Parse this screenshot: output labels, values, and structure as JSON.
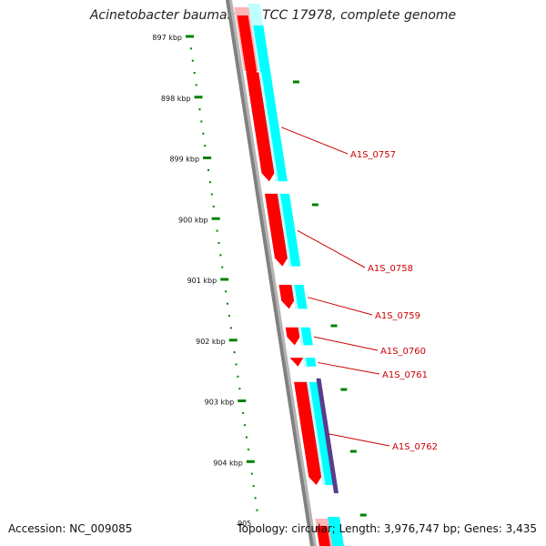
{
  "title": "Acinetobacter baumannii ATCC 17978, complete genome",
  "accession": "Accession: NC_009085",
  "topology": "Topology: circular; Length: 3,976,747 bp; Genes: 3,435",
  "colors": {
    "backbone": "#808080",
    "cds_forward": "#ff0000",
    "cds_forward_light": "#ffb6b6",
    "cds_highlight": "#00ffff",
    "cds_highlight_light": "#c0ffff",
    "cds_other": "#5a3c8c",
    "tick": "#008000",
    "gene_label": "#cc0000",
    "label_text": "#111111"
  },
  "scale": {
    "unit": "kbp",
    "ticks": [
      {
        "value": 897,
        "label": "897 kbp"
      },
      {
        "value": 898,
        "label": "898 kbp"
      },
      {
        "value": 899,
        "label": "899 kbp"
      },
      {
        "value": 900,
        "label": "900 kbp"
      },
      {
        "value": 901,
        "label": "901 kbp"
      },
      {
        "value": 902,
        "label": "902 kbp"
      },
      {
        "value": 903,
        "label": "903 kbp"
      },
      {
        "value": 904,
        "label": "904 kbp"
      },
      {
        "value": 905,
        "label": "905"
      }
    ]
  },
  "genes": [
    {
      "name": "A1S_0757",
      "start": 897.5,
      "end": 899.4
    },
    {
      "name": "A1S_0758",
      "start": 899.5,
      "end": 900.8
    },
    {
      "name": "A1S_0759",
      "start": 901.0,
      "end": 901.5
    },
    {
      "name": "A1S_0760",
      "start": 901.7,
      "end": 902.1
    },
    {
      "name": "A1S_0761",
      "start": 902.2,
      "end": 902.45
    },
    {
      "name": "A1S_0762",
      "start": 902.6,
      "end": 904.4
    }
  ]
}
